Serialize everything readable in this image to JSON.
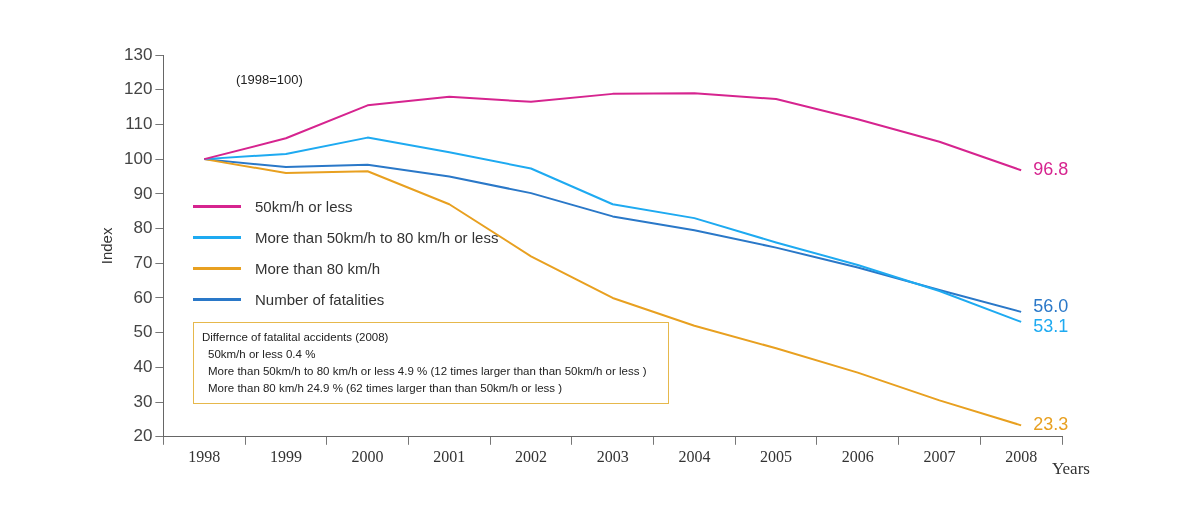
{
  "chart_data": {
    "type": "line",
    "categories": [
      "1998",
      "1999",
      "2000",
      "2001",
      "2002",
      "2003",
      "2004",
      "2005",
      "2006",
      "2007",
      "2008"
    ],
    "xlabel": "Years",
    "ylabel": "Index",
    "ylim": [
      20,
      130
    ],
    "yticks": [
      20,
      30,
      40,
      50,
      60,
      70,
      80,
      90,
      100,
      110,
      120,
      130
    ],
    "grid": false,
    "legend": "left",
    "marker": "none",
    "line_style": "solid",
    "series": [
      {
        "name": "50km/h or less",
        "color": "#d6248f",
        "values": [
          100,
          106,
          115.5,
          118,
          116.5,
          118.8,
          119,
          117.3,
          111.5,
          105,
          96.8
        ],
        "value_labels": [
          null,
          null,
          null,
          null,
          null,
          null,
          null,
          null,
          null,
          null,
          "96.8"
        ]
      },
      {
        "name": "More than 50km/h to 80 km/h or less",
        "color": "#1eaaf1",
        "values": [
          100,
          101.5,
          106.2,
          102,
          97.3,
          87,
          83,
          76,
          69.5,
          62,
          53.1
        ],
        "value_labels": [
          null,
          null,
          null,
          null,
          null,
          null,
          null,
          null,
          null,
          null,
          "53.1"
        ]
      },
      {
        "name": "More than 80 km/h",
        "color": "#e8a020",
        "values": [
          100,
          96,
          96.5,
          87,
          72,
          60,
          52,
          45.5,
          38.5,
          30.5,
          23.3
        ],
        "value_labels": [
          null,
          null,
          null,
          null,
          null,
          null,
          null,
          null,
          null,
          null,
          "23.3"
        ]
      },
      {
        "name": "Number of fatalities",
        "color": "#2a78c8",
        "values": [
          100,
          97.7,
          98.4,
          95,
          90.2,
          83.5,
          79.5,
          74.5,
          68.8,
          62.3,
          56.0
        ],
        "value_labels": [
          null,
          null,
          null,
          null,
          null,
          null,
          null,
          null,
          null,
          null,
          "56.0"
        ]
      }
    ],
    "annotations": [
      "(1998=100)",
      "Differnce of fatalital accidents (2008)",
      "50km/h or less 0.4 %",
      "More than 50km/h to 80 km/h or less 4.9 % (12 times larger than than 50km/h or less )",
      "More than 80 km/h 24.9 % (62 times larger than than 50km/h or less )"
    ]
  }
}
